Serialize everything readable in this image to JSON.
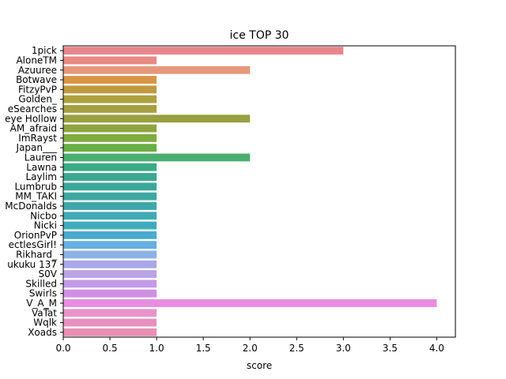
{
  "chart_data": {
    "type": "bar",
    "orientation": "horizontal",
    "title": "ice TOP 30",
    "xlabel": "score",
    "ylabel": "",
    "xlim": [
      0,
      4.2
    ],
    "xticks": [
      0.0,
      0.5,
      1.0,
      1.5,
      2.0,
      2.5,
      3.0,
      3.5,
      4.0
    ],
    "xtick_labels": [
      "0.0",
      "0.5",
      "1.0",
      "1.5",
      "2.0",
      "2.5",
      "3.0",
      "3.5",
      "4.0"
    ],
    "grid": false,
    "legend": "none",
    "categories": [
      "1pick",
      "AloneTM",
      "Azuuree",
      "Botwave",
      "FitzyPvP",
      "Golden_",
      "eSearches",
      "eye Hollow",
      "AM_afraid",
      "ImRayst",
      "Japan___",
      "Lauren",
      "Lawna",
      "Laylim",
      "Lumbrub",
      "MM_TAKI",
      "McDonalds",
      "Nicbo",
      "Nicki",
      "OrionPvP",
      "ectlesGirl!",
      "Rikhard_",
      "ukuku 137",
      "S0V",
      "Skilled",
      "Swirls",
      "V_A_M",
      "VaTat",
      "Wqlk",
      "Xoads"
    ],
    "values": [
      3,
      1,
      2,
      1,
      1,
      1,
      1,
      2,
      1,
      1,
      1,
      2,
      1,
      1,
      1,
      1,
      1,
      1,
      1,
      1,
      1,
      1,
      1,
      1,
      1,
      1,
      4,
      1,
      1,
      1
    ],
    "colors": [
      "#e8868c",
      "#e88a82",
      "#e6977a",
      "#d99545",
      "#c09a40",
      "#aea140",
      "#a69f43",
      "#99a042",
      "#8ea53f",
      "#7fab3f",
      "#69ae45",
      "#4aae6e",
      "#3aab86",
      "#3aa88f",
      "#3ba79a",
      "#3ca9a2",
      "#3ea7aa",
      "#40a9b5",
      "#41abbd",
      "#4aaad0",
      "#65b0e2",
      "#8ab2e6",
      "#a8a9e8",
      "#bca3e6",
      "#c49ae8",
      "#d08fe6",
      "#e88de0",
      "#e893cc",
      "#e891c0",
      "#e890b4"
    ]
  }
}
